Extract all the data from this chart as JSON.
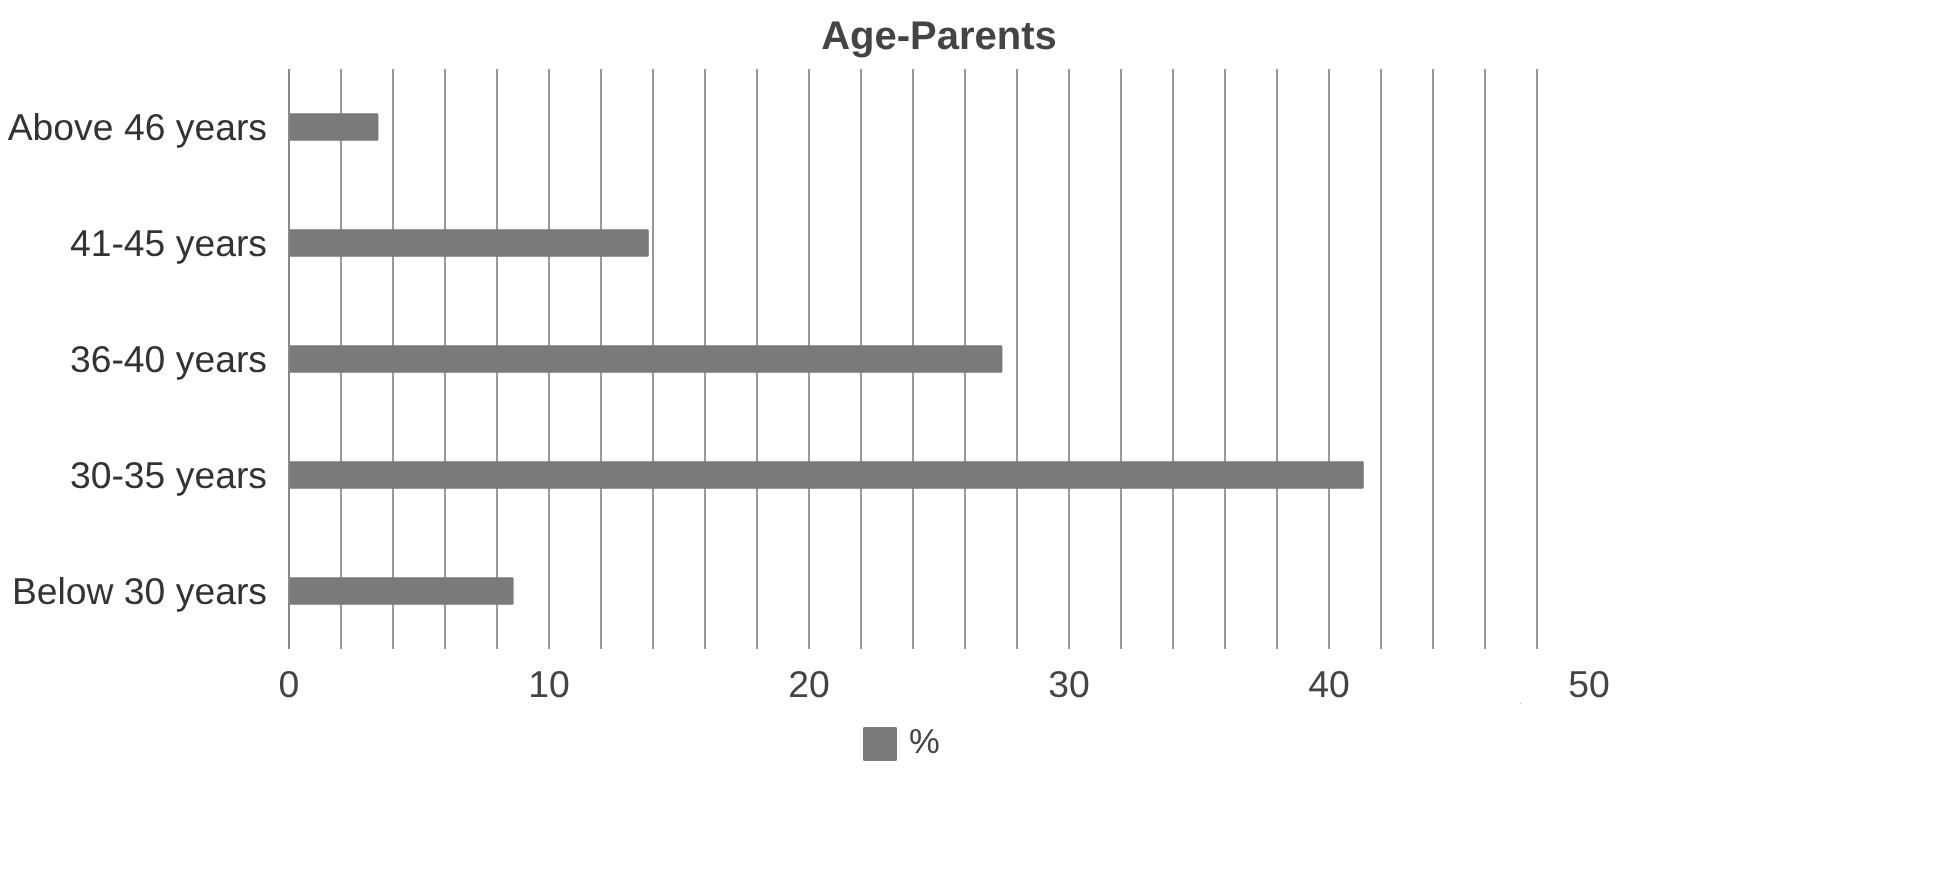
{
  "chart_data": {
    "type": "bar",
    "orientation": "horizontal",
    "title": "Age-Parents",
    "categories": [
      "Above 46 years",
      "41-45 years",
      "36-40 years",
      "30-35 years",
      "Below 30 years"
    ],
    "series": [
      {
        "name": "%",
        "color": "#7a7a7a",
        "values": [
          3.4,
          13.8,
          27.4,
          41.3,
          8.6
        ]
      }
    ],
    "xlim": [
      0,
      50
    ],
    "xticks": [
      0,
      {
        "value": 2,
        "label": null
      },
      {
        "value": 4,
        "label": null
      },
      {
        "value": 6,
        "label": null
      },
      {
        "value": 8,
        "label": null
      },
      10,
      {
        "value": 12,
        "label": null
      },
      {
        "value": 14,
        "label": null
      },
      {
        "value": 16,
        "label": null
      },
      {
        "value": 18,
        "label": null
      },
      20,
      {
        "value": 22,
        "label": null
      },
      {
        "value": 24,
        "label": null
      },
      {
        "value": 26,
        "label": null
      },
      {
        "value": 28,
        "label": null
      },
      30,
      {
        "value": 32,
        "label": null
      },
      {
        "value": 34,
        "label": null
      },
      {
        "value": 36,
        "label": null
      },
      {
        "value": 38,
        "label": null
      },
      40,
      {
        "value": 42,
        "label": null
      },
      {
        "value": 44,
        "label": null
      },
      {
        "value": 46,
        "label": null
      },
      {
        "value": 48,
        "label": null
      },
      50
    ],
    "grid": "x",
    "legend": "bottom"
  }
}
